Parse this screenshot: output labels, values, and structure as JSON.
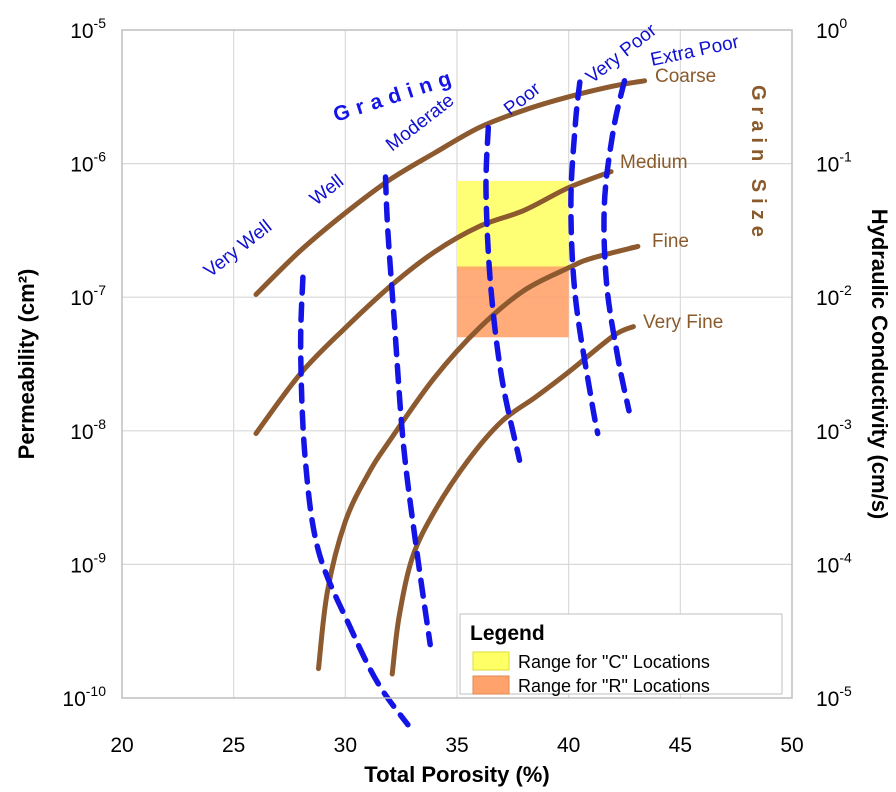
{
  "chart_data": {
    "type": "line",
    "xlabel": "Total Porosity (%)",
    "ylabel_left": "Permeability (cm²)",
    "ylabel_right": "Hydraulic Conductivity (cm/s)",
    "xlim": [
      20,
      50
    ],
    "x_ticks": [
      20,
      25,
      30,
      35,
      40,
      45,
      50
    ],
    "ylim_log10": [
      -10,
      -5
    ],
    "y_scale": "log",
    "left_ticks": [
      {
        "exp": -10,
        "base": "10",
        "sup": "-10"
      },
      {
        "exp": -9,
        "base": "10",
        "sup": "-9"
      },
      {
        "exp": -8,
        "base": "10",
        "sup": "-8"
      },
      {
        "exp": -7,
        "base": "10",
        "sup": "-7"
      },
      {
        "exp": -6,
        "base": "10",
        "sup": "-6"
      },
      {
        "exp": -5,
        "base": "10",
        "sup": "-5"
      }
    ],
    "right_ticks": [
      {
        "exp": -10,
        "base": "10",
        "sup": "-5"
      },
      {
        "exp": -9,
        "base": "10",
        "sup": "-4"
      },
      {
        "exp": -8,
        "base": "10",
        "sup": "-3"
      },
      {
        "exp": -7,
        "base": "10",
        "sup": "-2"
      },
      {
        "exp": -6,
        "base": "10",
        "sup": "-1"
      },
      {
        "exp": -5,
        "base": "10",
        "sup": "0"
      }
    ],
    "grid": true,
    "grain_size_title": "Grain Size",
    "grading_title": "Grading",
    "grain_size_series": [
      {
        "name": "Coarse",
        "color": "#8c5a2e",
        "points": [
          [
            26,
            -6.98
          ],
          [
            28,
            -6.65
          ],
          [
            30,
            -6.37
          ],
          [
            32,
            -6.12
          ],
          [
            34,
            -5.92
          ],
          [
            36,
            -5.73
          ],
          [
            38,
            -5.6
          ],
          [
            40,
            -5.5
          ],
          [
            42,
            -5.42
          ],
          [
            43.4,
            -5.38
          ]
        ]
      },
      {
        "name": "Medium",
        "color": "#8c5a2e",
        "points": [
          [
            26,
            -8.02
          ],
          [
            28,
            -7.57
          ],
          [
            30,
            -7.23
          ],
          [
            32,
            -6.92
          ],
          [
            34,
            -6.66
          ],
          [
            36,
            -6.47
          ],
          [
            38,
            -6.35
          ],
          [
            40,
            -6.18
          ],
          [
            41.9,
            -6.06
          ]
        ]
      },
      {
        "name": "Fine",
        "color": "#8c5a2e",
        "points": [
          [
            28.8,
            -9.78
          ],
          [
            29.2,
            -9.2
          ],
          [
            30,
            -8.68
          ],
          [
            31,
            -8.33
          ],
          [
            32,
            -8.07
          ],
          [
            34,
            -7.6
          ],
          [
            36,
            -7.23
          ],
          [
            38,
            -6.95
          ],
          [
            40,
            -6.78
          ],
          [
            41,
            -6.71
          ],
          [
            43.1,
            -6.62
          ]
        ]
      },
      {
        "name": "Very Fine",
        "color": "#8c5a2e",
        "points": [
          [
            32.1,
            -9.82
          ],
          [
            32.4,
            -9.4
          ],
          [
            33,
            -8.95
          ],
          [
            34,
            -8.6
          ],
          [
            35.5,
            -8.22
          ],
          [
            37,
            -7.93
          ],
          [
            38.5,
            -7.75
          ],
          [
            40,
            -7.56
          ],
          [
            42,
            -7.29
          ],
          [
            42.9,
            -7.22
          ]
        ]
      }
    ],
    "grading_series": [
      {
        "name": "Very Well",
        "color": "#1414e6",
        "points": [
          [
            28.1,
            -6.85
          ],
          [
            28,
            -7.4
          ],
          [
            28.2,
            -8.2
          ],
          [
            28.8,
            -8.9
          ],
          [
            30.3,
            -9.5
          ],
          [
            31.5,
            -9.9
          ],
          [
            32.8,
            -10.2
          ]
        ]
      },
      {
        "name": "Well",
        "color": "#1414e6",
        "points": [
          [
            31.8,
            -6.1
          ],
          [
            31.9,
            -6.5
          ],
          [
            32.2,
            -7.2
          ],
          [
            32.6,
            -8.1
          ],
          [
            33.2,
            -8.9
          ],
          [
            33.8,
            -9.6
          ]
        ]
      },
      {
        "name": "Moderate",
        "color": "#1414e6",
        "points": [
          [
            36.4,
            -5.73
          ],
          [
            36.3,
            -6.2
          ],
          [
            36.5,
            -6.9
          ],
          [
            37,
            -7.6
          ],
          [
            37.8,
            -8.22
          ]
        ]
      },
      {
        "name": "Poor",
        "color": "#1414e6",
        "points": [
          [
            40.5,
            -5.39
          ],
          [
            40.3,
            -5.7
          ],
          [
            40.1,
            -6.3
          ],
          [
            40.3,
            -7
          ],
          [
            41,
            -7.75
          ],
          [
            41.3,
            -8.02
          ]
        ]
      },
      {
        "name": "Very Poor",
        "color": "#1414e6",
        "points": [
          [
            42.5,
            -5.38
          ],
          [
            42,
            -5.75
          ],
          [
            41.6,
            -6.3
          ],
          [
            41.7,
            -6.9
          ],
          [
            42.2,
            -7.45
          ],
          [
            42.7,
            -7.85
          ]
        ]
      }
    ],
    "labels": {
      "coarse": "Coarse",
      "medium": "Medium",
      "fine": "Fine",
      "very_fine": "Very Fine",
      "very_well": "Very Well",
      "well": "Well",
      "moderate": "Moderate",
      "poor": "Poor",
      "very_poor": "Very Poor",
      "extra_poor": "Extra Poor"
    },
    "ranges": [
      {
        "name": "Range for \"C\" Locations",
        "color": "#ffff66",
        "x": [
          35,
          40
        ],
        "y_log10": [
          -6.8,
          -6.13
        ]
      },
      {
        "name": "Range for \"R\" Locations",
        "color": "#ffa26b",
        "x": [
          35,
          40
        ],
        "y_log10": [
          -7.3,
          -6.77
        ]
      }
    ],
    "legend": {
      "title": "Legend",
      "placement": "bottom-right"
    }
  }
}
